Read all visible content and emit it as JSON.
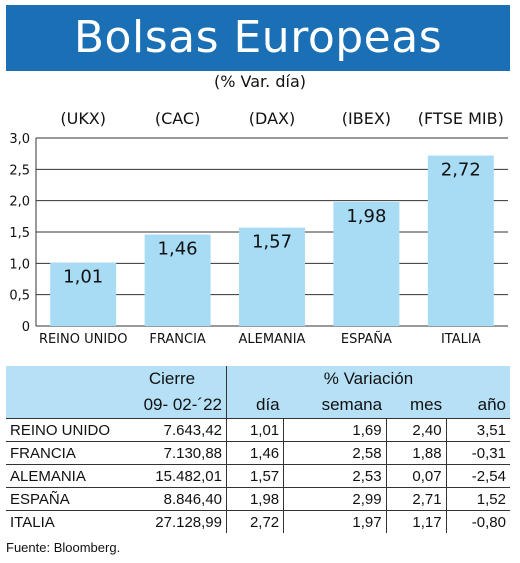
{
  "title": "Bolsas Europeas",
  "subtitle": "(% Var. día)",
  "chart_data": {
    "type": "bar",
    "indices": [
      "(UKX)",
      "(CAC)",
      "(DAX)",
      "(IBEX)",
      "(FTSE MIB)"
    ],
    "categories": [
      "REINO UNIDO",
      "FRANCIA",
      "ALEMANIA",
      "ESPAÑA",
      "ITALIA"
    ],
    "values": [
      1.01,
      1.46,
      1.57,
      1.98,
      2.72
    ],
    "value_labels": [
      "1,01",
      "1,46",
      "1,57",
      "1,98",
      "2,72"
    ],
    "ylim": [
      0,
      3.0
    ],
    "yticks": [
      "0",
      "0,5",
      "1,0",
      "1,5",
      "2,0",
      "2,5",
      "3,0"
    ],
    "grid": true,
    "bar_color": "#a8dcf5"
  },
  "table": {
    "header_cierre": "Cierre",
    "header_variacion": "% Variación",
    "date": "09- 02-´22",
    "col_dia": "día",
    "col_semana": "semana",
    "col_mes": "mes",
    "col_ano": "año",
    "rows": [
      {
        "name": "REINO UNIDO",
        "cierre": "7.643,42",
        "dia": "1,01",
        "semana": "1,69",
        "mes": "2,40",
        "ano": "3,51"
      },
      {
        "name": "FRANCIA",
        "cierre": "7.130,88",
        "dia": "1,46",
        "semana": "2,58",
        "mes": "1,88",
        "ano": "-0,31"
      },
      {
        "name": "ALEMANIA",
        "cierre": "15.482,01",
        "dia": "1,57",
        "semana": "2,53",
        "mes": "0,07",
        "ano": "-2,54"
      },
      {
        "name": "ESPAÑA",
        "cierre": "8.846,40",
        "dia": "1,98",
        "semana": "2,99",
        "mes": "2,71",
        "ano": "1,52"
      },
      {
        "name": "ITALIA",
        "cierre": "27.128,99",
        "dia": "2,72",
        "semana": "1,97",
        "mes": "1,17",
        "ano": "-0,80"
      }
    ]
  },
  "source": "Fuente: Bloomberg."
}
